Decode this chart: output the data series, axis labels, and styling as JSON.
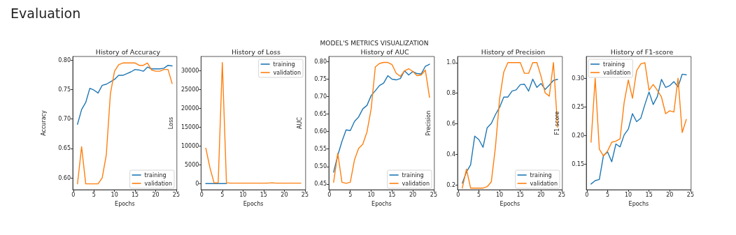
{
  "chart_data": [
    {
      "type": "other",
      "title": "Evaluation",
      "subtitle": "MODEL'S METRICS VISUALIZATION"
    },
    {
      "type": "line",
      "title": "History of Accuracy",
      "xlabel": "Epochs",
      "ylabel": "Accuracy",
      "x": [
        1,
        2,
        3,
        4,
        5,
        6,
        7,
        8,
        9,
        10,
        11,
        12,
        13,
        14,
        15,
        16,
        17,
        18,
        19,
        20,
        21,
        22,
        23,
        24
      ],
      "xlim": [
        -0.15,
        25.15
      ],
      "xticks": [
        0,
        5,
        10,
        15,
        20,
        25
      ],
      "ylim": [
        0.58,
        0.806
      ],
      "yticks": [
        {
          "value": 0.6,
          "label": "0.60"
        },
        {
          "value": 0.65,
          "label": "0.65"
        },
        {
          "value": 0.7,
          "label": "0.70"
        },
        {
          "value": 0.75,
          "label": "0.75"
        },
        {
          "value": 0.8,
          "label": "0.80"
        }
      ],
      "grid": false,
      "legend": "bottom right",
      "marker": "none",
      "line_style": "solid",
      "series": [
        {
          "name": "training",
          "color": "#1f77b4",
          "values": [
            0.691,
            0.716,
            0.728,
            0.752,
            0.749,
            0.744,
            0.757,
            0.759,
            0.763,
            0.767,
            0.774,
            0.774,
            0.777,
            0.78,
            0.784,
            0.783,
            0.781,
            0.788,
            0.785,
            0.785,
            0.785,
            0.786,
            0.791,
            0.79
          ]
        },
        {
          "name": "validation",
          "color": "#ff7f0e",
          "values": [
            0.59,
            0.653,
            0.59,
            0.59,
            0.59,
            0.59,
            0.6,
            0.639,
            0.743,
            0.781,
            0.792,
            0.795,
            0.795,
            0.795,
            0.795,
            0.791,
            0.791,
            0.795,
            0.783,
            0.781,
            0.781,
            0.784,
            0.784,
            0.76
          ]
        }
      ]
    },
    {
      "type": "line",
      "title": "History of Loss",
      "xlabel": "Epochs",
      "ylabel": "Loss",
      "x": [
        1,
        2,
        3,
        4,
        5,
        6,
        7,
        8,
        9,
        10,
        11,
        12,
        13,
        14,
        15,
        16,
        17,
        18,
        19,
        20,
        21,
        22,
        23,
        24
      ],
      "xlim": [
        -0.15,
        25.15
      ],
      "xticks": [
        0,
        5,
        10,
        15,
        20,
        25
      ],
      "ylim": [
        -1650,
        33700
      ],
      "yticks": [
        0,
        5000,
        10000,
        15000,
        20000,
        25000,
        30000
      ],
      "grid": false,
      "legend": "top right",
      "marker": "none",
      "line_style": "solid",
      "series": [
        {
          "name": "training",
          "color": "#1f77b4",
          "values": [
            0,
            0,
            0,
            0,
            0,
            0,
            null,
            null,
            null,
            null,
            null,
            null,
            null,
            null,
            null,
            null,
            null,
            null,
            null,
            null,
            null,
            null,
            null,
            null
          ]
        },
        {
          "name": "validation",
          "color": "#ff7f0e",
          "values": [
            9400,
            4200,
            200,
            200,
            32100,
            200,
            100,
            100,
            100,
            100,
            100,
            100,
            100,
            100,
            100,
            100,
            200,
            100,
            100,
            100,
            100,
            100,
            100,
            100
          ]
        }
      ]
    },
    {
      "type": "line",
      "title": "History of AUC",
      "xlabel": "Epochs",
      "ylabel": "AUC",
      "x": [
        1,
        2,
        3,
        4,
        5,
        6,
        7,
        8,
        9,
        10,
        11,
        12,
        13,
        14,
        15,
        16,
        17,
        18,
        19,
        20,
        21,
        22,
        23,
        24
      ],
      "xlim": [
        -0.15,
        25.15
      ],
      "xticks": [
        0,
        5,
        10,
        15,
        20,
        25
      ],
      "ylim": [
        0.4335,
        0.815
      ],
      "yticks": [
        {
          "value": 0.45,
          "label": "0.45"
        },
        {
          "value": 0.5,
          "label": "0.50"
        },
        {
          "value": 0.55,
          "label": "0.55"
        },
        {
          "value": 0.6,
          "label": "0.60"
        },
        {
          "value": 0.65,
          "label": "0.65"
        },
        {
          "value": 0.7,
          "label": "0.70"
        },
        {
          "value": 0.75,
          "label": "0.75"
        },
        {
          "value": 0.8,
          "label": "0.80"
        }
      ],
      "grid": false,
      "legend": "bottom right",
      "marker": "none",
      "line_style": "solid",
      "series": [
        {
          "name": "training",
          "color": "#1f77b4",
          "values": [
            0.484,
            0.532,
            0.572,
            0.605,
            0.603,
            0.629,
            0.642,
            0.665,
            0.675,
            0.703,
            0.717,
            0.732,
            0.739,
            0.76,
            0.75,
            0.748,
            0.752,
            0.774,
            0.762,
            0.772,
            0.766,
            0.765,
            0.787,
            0.793
          ]
        },
        {
          "name": "validation",
          "color": "#ff7f0e",
          "values": [
            0.455,
            0.538,
            0.455,
            0.452,
            0.455,
            0.519,
            0.552,
            0.564,
            0.599,
            0.665,
            0.785,
            0.795,
            0.798,
            0.798,
            0.792,
            0.767,
            0.758,
            0.774,
            0.78,
            0.772,
            0.76,
            0.762,
            0.776,
            0.698
          ]
        }
      ]
    },
    {
      "type": "line",
      "title": "History of Precision",
      "xlabel": "Epochs",
      "ylabel": "Precision",
      "x": [
        1,
        2,
        3,
        4,
        5,
        6,
        7,
        8,
        9,
        10,
        11,
        12,
        13,
        14,
        15,
        16,
        17,
        18,
        19,
        20,
        21,
        22,
        23,
        24
      ],
      "xlim": [
        -0.15,
        25.15
      ],
      "xticks": [
        0,
        5,
        10,
        15,
        20,
        25
      ],
      "ylim": [
        0.17,
        1.04
      ],
      "yticks": [
        0.2,
        0.4,
        0.6,
        0.8,
        {
          "value": 1,
          "label": "1.0"
        }
      ],
      "grid": false,
      "legend": "bottom right",
      "marker": "none",
      "line_style": "solid",
      "series": [
        {
          "name": "training",
          "color": "#1f77b4",
          "values": [
            0.213,
            0.286,
            0.333,
            0.52,
            0.497,
            0.447,
            0.575,
            0.603,
            0.661,
            0.708,
            0.775,
            0.775,
            0.814,
            0.822,
            0.856,
            0.859,
            0.814,
            0.892,
            0.838,
            0.864,
            0.825,
            0.853,
            0.884,
            0.891
          ]
        },
        {
          "name": "validation",
          "color": "#ff7f0e",
          "values": [
            0.181,
            0.305,
            0.181,
            0.181,
            0.181,
            0.181,
            0.19,
            0.222,
            0.45,
            0.763,
            0.938,
            1.0,
            1.0,
            1.0,
            1.0,
            0.93,
            0.93,
            1.0,
            1.0,
            0.911,
            0.802,
            0.781,
            1.0,
            0.578
          ]
        }
      ]
    },
    {
      "type": "line",
      "title": "History of F1-score",
      "xlabel": "Epochs",
      "ylabel": "F1 score",
      "x": [
        1,
        2,
        3,
        4,
        5,
        6,
        7,
        8,
        9,
        10,
        11,
        12,
        13,
        14,
        15,
        16,
        17,
        18,
        19,
        20,
        21,
        22,
        23,
        24
      ],
      "xlim": [
        -0.15,
        25.15
      ],
      "xticks": [
        0,
        5,
        10,
        15,
        20,
        25
      ],
      "ylim": [
        0.105,
        0.338
      ],
      "yticks": [
        0.15,
        {
          "value": 0.2,
          "label": "0.20"
        },
        0.25,
        {
          "value": 0.3,
          "label": "0.30"
        }
      ],
      "grid": false,
      "legend": "top left",
      "marker": "none",
      "line_style": "solid",
      "series": [
        {
          "name": "training",
          "color": "#1f77b4",
          "values": [
            0.115,
            0.121,
            0.123,
            0.165,
            0.171,
            0.154,
            0.185,
            0.18,
            0.201,
            0.211,
            0.238,
            0.224,
            0.23,
            0.254,
            0.276,
            0.254,
            0.268,
            0.298,
            0.284,
            0.287,
            0.294,
            0.285,
            0.307,
            0.306
          ]
        },
        {
          "name": "validation",
          "color": "#ff7f0e",
          "values": [
            0.188,
            0.3,
            0.176,
            0.164,
            0.173,
            0.188,
            0.19,
            0.194,
            0.258,
            0.297,
            0.265,
            0.313,
            0.325,
            0.327,
            0.279,
            0.289,
            0.279,
            0.267,
            0.238,
            0.243,
            0.241,
            0.3,
            0.205,
            0.228
          ]
        }
      ]
    }
  ]
}
